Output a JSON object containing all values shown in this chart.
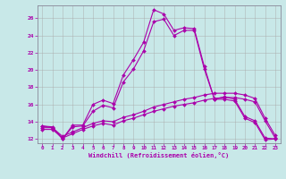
{
  "background_color": "#c8e8e8",
  "grid_color": "#aaaaaa",
  "line_color": "#aa00aa",
  "xlabel": "Windchill (Refroidissement éolien,°C)",
  "xlim": [
    -0.5,
    23.5
  ],
  "ylim": [
    11.5,
    27.5
  ],
  "yticks": [
    12,
    14,
    16,
    18,
    20,
    22,
    24,
    26
  ],
  "xticks": [
    0,
    1,
    2,
    3,
    4,
    5,
    6,
    7,
    8,
    9,
    10,
    11,
    12,
    13,
    14,
    15,
    16,
    17,
    18,
    19,
    20,
    21,
    22,
    23
  ],
  "line1_x": [
    0,
    1,
    2,
    3,
    4,
    5,
    6,
    7,
    8,
    9,
    10,
    11,
    12,
    13,
    14,
    15,
    16,
    17,
    18,
    19,
    20,
    21,
    22,
    23
  ],
  "line1_y": [
    13.5,
    13.4,
    12.0,
    13.6,
    13.6,
    16.0,
    16.5,
    16.1,
    19.4,
    21.2,
    23.2,
    27.0,
    26.5,
    24.6,
    24.9,
    24.8,
    20.4,
    16.6,
    16.9,
    16.6,
    14.6,
    14.1,
    12.1,
    12.0
  ],
  "line2_x": [
    0,
    1,
    2,
    3,
    4,
    5,
    6,
    7,
    8,
    9,
    10,
    11,
    12,
    13,
    14,
    15,
    16,
    17,
    18,
    19,
    20,
    21,
    22,
    23
  ],
  "line2_y": [
    13.5,
    13.3,
    12.0,
    13.4,
    13.5,
    15.2,
    15.9,
    15.6,
    18.6,
    20.1,
    22.2,
    25.6,
    25.9,
    24.0,
    24.6,
    24.6,
    20.1,
    16.6,
    16.6,
    16.4,
    14.4,
    13.9,
    11.9,
    12.0
  ],
  "line3_x": [
    0,
    1,
    2,
    3,
    4,
    5,
    6,
    7,
    8,
    9,
    10,
    11,
    12,
    13,
    14,
    15,
    16,
    17,
    18,
    19,
    20,
    21,
    22,
    23
  ],
  "line3_y": [
    13.1,
    13.1,
    12.1,
    12.6,
    13.1,
    13.5,
    13.8,
    13.6,
    14.1,
    14.4,
    14.8,
    15.2,
    15.5,
    15.8,
    16.0,
    16.2,
    16.5,
    16.7,
    16.8,
    16.8,
    16.6,
    16.3,
    14.1,
    12.1
  ],
  "line4_x": [
    0,
    1,
    2,
    3,
    4,
    5,
    6,
    7,
    8,
    9,
    10,
    11,
    12,
    13,
    14,
    15,
    16,
    17,
    18,
    19,
    20,
    21,
    22,
    23
  ],
  "line4_y": [
    13.3,
    13.3,
    12.3,
    12.8,
    13.3,
    13.8,
    14.1,
    14.0,
    14.5,
    14.8,
    15.2,
    15.7,
    16.0,
    16.3,
    16.6,
    16.8,
    17.1,
    17.3,
    17.3,
    17.3,
    17.1,
    16.7,
    14.4,
    12.4
  ]
}
